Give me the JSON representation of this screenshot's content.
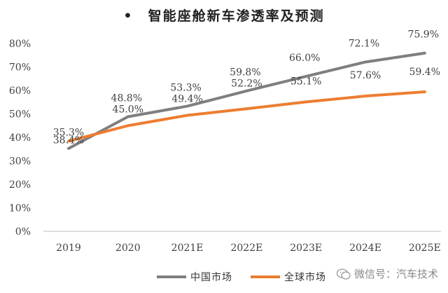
{
  "title": "•　智能座舱新车渗透率及预测",
  "colors": {
    "china": "#7f7f7f",
    "global": "#ed7d31",
    "axis": "#bfbfbf",
    "text": "#404040"
  },
  "watermark": "微信号：汽车技术",
  "chart_data": {
    "type": "line",
    "categories": [
      "2019",
      "2020",
      "2021E",
      "2022E",
      "2023E",
      "2024E",
      "2025E"
    ],
    "ylim": [
      0,
      80
    ],
    "yticks": [
      "0%",
      "10%",
      "20%",
      "30%",
      "40%",
      "50%",
      "60%",
      "70%",
      "80%"
    ],
    "grid": false,
    "legend_position": "bottom",
    "series": [
      {
        "name": "中国市场",
        "color": "#7f7f7f",
        "values": [
          35.3,
          48.8,
          53.3,
          59.8,
          66.0,
          72.1,
          75.9
        ],
        "labels": [
          "35.3%",
          "48.8%",
          "53.3%",
          "59.8%",
          "66.0%",
          "72.1%",
          "75.9%"
        ]
      },
      {
        "name": "全球市场",
        "color": "#ed7d31",
        "values": [
          38.4,
          45.0,
          49.4,
          52.2,
          55.1,
          57.6,
          59.4
        ],
        "labels": [
          "38.4%",
          "45.0%",
          "49.4%",
          "52.2%",
          "55.1%",
          "57.6%",
          "59.4%"
        ]
      }
    ]
  }
}
